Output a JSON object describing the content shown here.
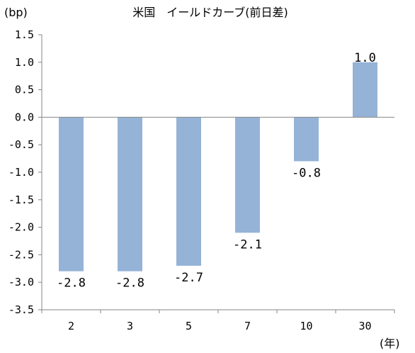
{
  "chart_data": {
    "type": "bar",
    "title": "米国　イールドカーブ(前日差)",
    "ylabel": "(bp)",
    "xlabel": "(年)",
    "categories": [
      "2",
      "3",
      "5",
      "7",
      "10",
      "30"
    ],
    "values": [
      -2.8,
      -2.8,
      -2.7,
      -2.1,
      -0.8,
      1.0
    ],
    "data_labels": [
      "-2.8",
      "-2.8",
      "-2.7",
      "-2.1",
      "-0.8",
      "1.0"
    ],
    "ylim": [
      -3.5,
      1.5
    ],
    "yticks": [
      1.5,
      1.0,
      0.5,
      0.0,
      -0.5,
      -1.0,
      -1.5,
      -2.0,
      -2.5,
      -3.0,
      -3.5
    ],
    "ytick_labels": [
      "1.5",
      "1.0",
      "0.5",
      "0.0",
      "-0.5",
      "-1.0",
      "-1.5",
      "-2.0",
      "-2.5",
      "-3.0",
      "-3.5"
    ],
    "bar_color": "#95b3d7",
    "grid": false,
    "legend": "none"
  }
}
